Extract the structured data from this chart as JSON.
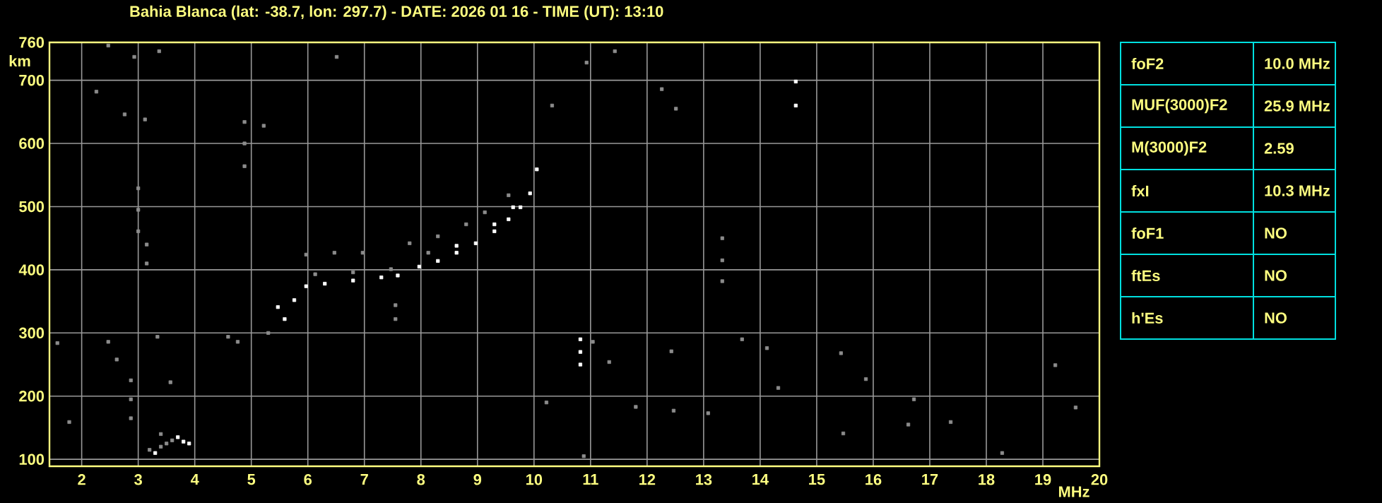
{
  "chart_data": [
    {
      "type": "scatter",
      "title": "Bahia Blanca (lat: -38.7, lon: 297.7) - DATE: 2026 01 16 - TIME (UT): 13:10",
      "xlabel": "MHz",
      "ylabel": "km",
      "xlim": [
        1.43,
        20
      ],
      "ylim": [
        89,
        760
      ],
      "xticks": [
        2,
        3,
        4,
        5,
        6,
        7,
        8,
        9,
        10,
        11,
        12,
        13,
        14,
        15,
        16,
        17,
        18,
        19,
        20
      ],
      "yticks": [
        100,
        200,
        300,
        400,
        500,
        600,
        700,
        760
      ],
      "grid": true,
      "marker": "square",
      "series": [
        {
          "color": "#ffffff",
          "x": [
            5.47,
            5.59,
            5.76,
            5.97,
            6.3,
            6.8,
            7.3,
            7.59,
            7.97,
            8.3,
            8.63,
            8.97,
            9.3,
            9.55,
            9.76,
            9.93,
            10.05,
            9.3,
            9.63,
            8.63,
            3.7,
            3.8,
            3.9,
            3.3,
            10.82,
            10.82,
            10.82,
            14.63,
            14.63
          ],
          "values": [
            341,
            322,
            352,
            374,
            378,
            383,
            388,
            391,
            405,
            414,
            427,
            442,
            461,
            480,
            499,
            521,
            559,
            472,
            499,
            438,
            135,
            128,
            125,
            110,
            290,
            270,
            250,
            698,
            660
          ]
        },
        {
          "color": "#8c8c8c",
          "x": [
            5.97,
            6.47,
            6.97,
            7.8,
            8.3,
            8.8,
            9.13,
            9.55,
            6.13,
            6.8,
            7.47,
            8.13,
            7.55,
            7.55,
            5.3,
            2.87,
            2.87,
            2.87,
            4.88,
            4.88,
            4.88,
            3.0,
            3.0,
            3.0,
            3.15,
            3.15,
            13.33,
            13.33,
            13.33,
            3.4,
            3.5,
            3.6,
            3.4,
            3.2,
            2.47,
            2.93,
            3.37,
            2.26,
            2.76,
            3.12,
            5.22,
            6.51,
            10.32,
            10.93,
            11.43,
            12.26,
            12.51,
            1.57,
            1.78,
            2.47,
            2.62,
            3.34,
            3.57,
            4.59,
            4.76,
            10.22,
            11.04,
            11.33,
            11.8,
            12.43,
            12.47,
            10.88,
            13.68,
            14.12,
            14.32,
            15.43,
            15.47,
            15.87,
            16.62,
            16.72,
            17.37,
            18.28,
            19.22,
            19.58,
            13.08
          ],
          "values": [
            424,
            427,
            427,
            442,
            453,
            472,
            491,
            518,
            393,
            396,
            401,
            427,
            344,
            322,
            300,
            225,
            195,
            165,
            634,
            600,
            564,
            529,
            495,
            461,
            440,
            410,
            450,
            415,
            382,
            120,
            125,
            130,
            140,
            115,
            755,
            737,
            746,
            682,
            646,
            638,
            628,
            737,
            660,
            728,
            746,
            686,
            655,
            284,
            159,
            286,
            258,
            294,
            222,
            294,
            286,
            190,
            286,
            254,
            183,
            271,
            177,
            105,
            290,
            276,
            213,
            268,
            141,
            227,
            155,
            195,
            159,
            110,
            249,
            182,
            173
          ]
        }
      ]
    },
    {
      "type": "other",
      "annotations": [
        "foF2",
        "10.0 MHz",
        "MUF(3000)F2",
        "25.9 MHz",
        "M(3000)F2",
        "2.59",
        "fxI",
        "10.3 MHz",
        "foF1",
        "NO",
        "ftEs",
        "NO",
        "h'Es",
        "NO"
      ]
    }
  ]
}
